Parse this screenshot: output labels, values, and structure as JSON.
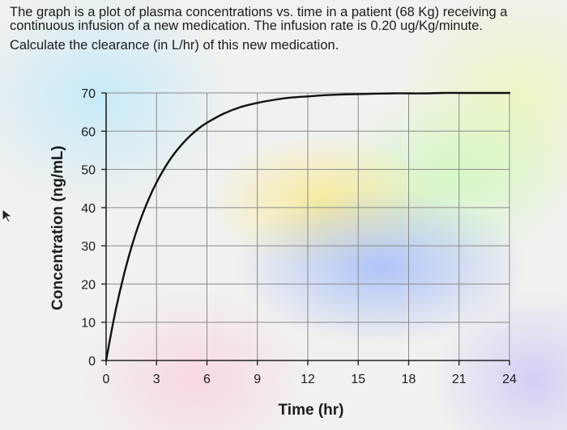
{
  "question": {
    "line1": "The graph is a plot of plasma concentrations vs. time in a patient (68 Kg) receiving a continuous infusion of a new medication.  The infusion rate is 0.20 ug/Kg/minute.",
    "line2": "Calculate the clearance (in L/hr) of this new medication."
  },
  "chart_data": {
    "type": "line",
    "title": "",
    "xlabel": "Time (hr)",
    "ylabel": "Concentration (ng/mL)",
    "xlim": [
      0,
      24
    ],
    "ylim": [
      0,
      70
    ],
    "xticks": [
      0,
      3,
      6,
      9,
      12,
      15,
      18,
      21,
      24
    ],
    "yticks": [
      0,
      10,
      20,
      30,
      40,
      50,
      60,
      70
    ],
    "grid": true,
    "series": [
      {
        "x": [
          0,
          0.5,
          1,
          1.5,
          2,
          2.5,
          3,
          3.5,
          4,
          4.5,
          5,
          5.5,
          6,
          7,
          8,
          9,
          10,
          11,
          12,
          13,
          14,
          15,
          16,
          17,
          18,
          19,
          20,
          21,
          22,
          23,
          24
        ],
        "values": [
          0,
          11.7,
          21.4,
          29.5,
          36.3,
          41.9,
          46.6,
          50.5,
          53.8,
          56.5,
          58.8,
          60.7,
          62.2,
          64.6,
          66.3,
          67.4,
          68.2,
          68.8,
          69.1,
          69.4,
          69.6,
          69.7,
          69.8,
          69.9,
          69.9,
          69.9,
          70.0,
          70.0,
          70.0,
          70.0,
          70.0
        ]
      }
    ]
  },
  "colors": {
    "curve": "#111111",
    "grid": "#8a8a8a",
    "text": "#1c1c1c"
  }
}
